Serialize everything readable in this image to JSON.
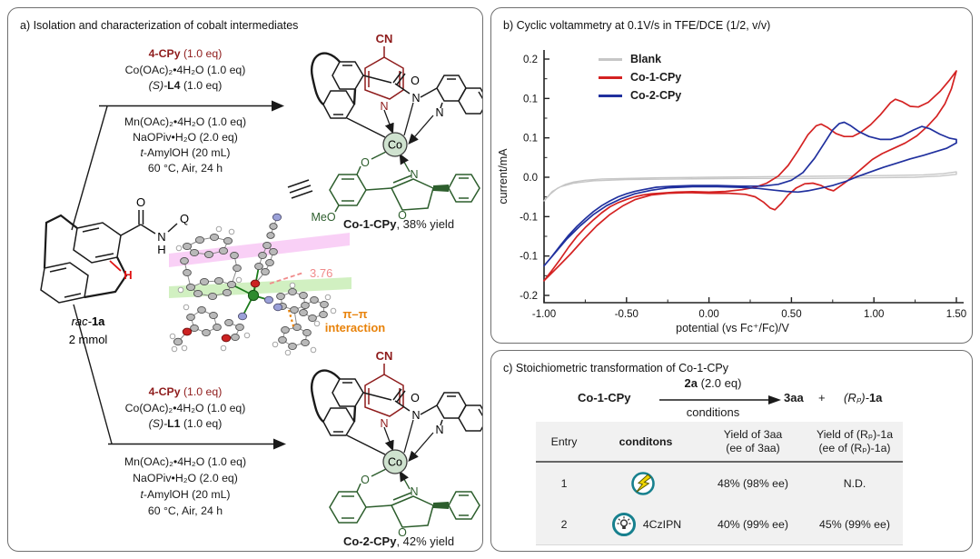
{
  "panel_a": {
    "title": "a) Isolation and characterization of cobalt intermediates",
    "substrate": {
      "name_italic": "rac-",
      "name_bold": "1a",
      "amount": "2 mmol",
      "atom_o": "O",
      "atom_n": "N",
      "atom_h": "H",
      "atom_q": "Q",
      "red_h": "H"
    },
    "reaction_top": {
      "reagent": "4-CPy",
      "reagent_eq": " (1.0 eq)",
      "line1": "Co(OAc)₂•4H₂O (1.0 eq)",
      "ligand_pre": "(S)-",
      "ligand": "L4",
      "ligand_eq": " (1.0 eq)",
      "below1": "Mn(OAc)₂•4H₂O (1.0 eq)",
      "below2": "NaOPiv•H₂O (2.0 eq)",
      "below3_it": "t",
      "below3_rest": "-AmylOH (20 mL)",
      "below4": "60 °C, Air, 24 h"
    },
    "reaction_bottom": {
      "reagent": "4-CPy",
      "reagent_eq": " (1.0 eq)",
      "line1": "Co(OAc)₂•4H₂O (1.0 eq)",
      "ligand_pre": "(S)-",
      "ligand": "L1",
      "ligand_eq": " (1.0 eq)",
      "below1": "Mn(OAc)₂•4H₂O (1.0 eq)",
      "below2": "NaOPiv•H₂O (2.0 eq)",
      "below3_it": "t",
      "below3_rest": "-AmylOH (20 mL)",
      "below4": "60 °C, Air, 24 h"
    },
    "complex_top": {
      "cn": "CN",
      "n_py": "N",
      "o_amide": "O",
      "n_amide": "N",
      "n_quin": "N",
      "co": "Co",
      "o_phenol": "O",
      "n_ox": "N",
      "o_ox": "O",
      "meo": "MeO",
      "caption_bold": "Co-1-CPy",
      "caption_rest": ", 38% yield"
    },
    "complex_bottom": {
      "cn": "CN",
      "n_py": "N",
      "o_amide": "O",
      "n_amide": "N",
      "n_quin": "N",
      "co": "Co",
      "o_phenol": "O",
      "n_ox": "N",
      "o_ox": "O",
      "caption_bold": "Co-2-CPy",
      "caption_rest": ", 42% yield"
    },
    "ortep": {
      "distance": "3.76",
      "pi_line1": "π–π",
      "pi_line2": "interaction"
    }
  },
  "chart_data": {
    "type": "line",
    "title": "b) Cyclic voltammetry at 0.1V/s in TFE/DCE (1/2, v/v)",
    "xlabel": "potential (vs Fc⁺/Fc)/V",
    "ylabel": "current/mA",
    "xlim": [
      -1.0,
      1.5
    ],
    "ylim": [
      -0.2,
      0.2
    ],
    "grid": false,
    "legend_position": "upper-left-inside",
    "x_ticks": [
      -1.0,
      -0.5,
      0.0,
      0.5,
      1.0,
      1.5
    ],
    "x_tick_labels": [
      "-1.00",
      "-0.50",
      "0.00",
      "0.50",
      "1.00",
      "1.50"
    ],
    "y_tick_labels": [
      "0.2",
      "0.1",
      "0.1",
      "0.0",
      "-0.1",
      "-0.1",
      "-0.2"
    ],
    "legend": [
      {
        "name": "Blank",
        "color": "#c6c6c6"
      },
      {
        "name": "Co-1-CPy",
        "color": "#d42222"
      },
      {
        "name": "Co-2-CPy",
        "color": "#20309e"
      }
    ],
    "series": [
      {
        "name": "Blank",
        "color": "#c6c6c6",
        "width": 1.4,
        "points": [
          [
            -1.0,
            -0.04
          ],
          [
            -0.96,
            -0.028
          ],
          [
            -0.92,
            -0.019
          ],
          [
            -0.87,
            -0.012
          ],
          [
            -0.82,
            -0.008
          ],
          [
            -0.75,
            -0.005
          ],
          [
            -0.65,
            -0.003
          ],
          [
            -0.5,
            -0.002
          ],
          [
            -0.3,
            -0.001
          ],
          [
            0.0,
            0.0
          ],
          [
            0.4,
            0.001
          ],
          [
            0.8,
            0.002
          ],
          [
            1.1,
            0.003
          ],
          [
            1.3,
            0.004
          ],
          [
            1.42,
            0.006
          ],
          [
            1.5,
            0.009
          ],
          [
            1.5,
            0.005
          ],
          [
            1.4,
            0.002
          ],
          [
            1.25,
            0.0
          ],
          [
            1.0,
            -0.001
          ],
          [
            0.6,
            -0.002
          ],
          [
            0.2,
            -0.002
          ],
          [
            -0.2,
            -0.003
          ],
          [
            -0.5,
            -0.004
          ],
          [
            -0.7,
            -0.006
          ],
          [
            -0.82,
            -0.01
          ],
          [
            -0.9,
            -0.016
          ],
          [
            -0.95,
            -0.024
          ],
          [
            -1.0,
            -0.04
          ]
        ]
      },
      {
        "name": "Co-1-CPy",
        "color": "#d42222",
        "width": 1.7,
        "points": [
          [
            -1.0,
            -0.175
          ],
          [
            -0.95,
            -0.157
          ],
          [
            -0.9,
            -0.138
          ],
          [
            -0.85,
            -0.118
          ],
          [
            -0.8,
            -0.1
          ],
          [
            -0.75,
            -0.085
          ],
          [
            -0.7,
            -0.072
          ],
          [
            -0.65,
            -0.06
          ],
          [
            -0.6,
            -0.05
          ],
          [
            -0.55,
            -0.043
          ],
          [
            -0.5,
            -0.0375
          ],
          [
            -0.45,
            -0.033
          ],
          [
            -0.4,
            -0.03
          ],
          [
            -0.35,
            -0.028
          ],
          [
            -0.3,
            -0.027
          ],
          [
            -0.2,
            -0.025
          ],
          [
            -0.1,
            -0.0245
          ],
          [
            0.0,
            -0.025
          ],
          [
            0.1,
            -0.024
          ],
          [
            0.2,
            -0.021
          ],
          [
            0.28,
            -0.017
          ],
          [
            0.35,
            -0.01
          ],
          [
            0.42,
            0.002
          ],
          [
            0.48,
            0.02
          ],
          [
            0.54,
            0.045
          ],
          [
            0.6,
            0.072
          ],
          [
            0.65,
            0.087
          ],
          [
            0.68,
            0.09
          ],
          [
            0.72,
            0.084
          ],
          [
            0.77,
            0.074
          ],
          [
            0.82,
            0.069
          ],
          [
            0.87,
            0.069
          ],
          [
            0.92,
            0.076
          ],
          [
            0.98,
            0.089
          ],
          [
            1.04,
            0.106
          ],
          [
            1.1,
            0.126
          ],
          [
            1.13,
            0.132
          ],
          [
            1.17,
            0.128
          ],
          [
            1.22,
            0.12
          ],
          [
            1.27,
            0.119
          ],
          [
            1.33,
            0.127
          ],
          [
            1.4,
            0.145
          ],
          [
            1.46,
            0.165
          ],
          [
            1.5,
            0.18
          ],
          [
            1.47,
            0.15
          ],
          [
            1.43,
            0.124
          ],
          [
            1.38,
            0.103
          ],
          [
            1.32,
            0.085
          ],
          [
            1.26,
            0.07
          ],
          [
            1.19,
            0.058
          ],
          [
            1.12,
            0.049
          ],
          [
            1.05,
            0.04
          ],
          [
            0.99,
            0.03
          ],
          [
            0.94,
            0.018
          ],
          [
            0.89,
            0.006
          ],
          [
            0.84,
            -0.006
          ],
          [
            0.79,
            -0.016
          ],
          [
            0.755,
            -0.023
          ],
          [
            0.72,
            -0.02
          ],
          [
            0.68,
            -0.014
          ],
          [
            0.63,
            -0.01
          ],
          [
            0.58,
            -0.011
          ],
          [
            0.53,
            -0.018
          ],
          [
            0.48,
            -0.03
          ],
          [
            0.44,
            -0.044
          ],
          [
            0.4,
            -0.055
          ],
          [
            0.37,
            -0.052
          ],
          [
            0.33,
            -0.042
          ],
          [
            0.28,
            -0.033
          ],
          [
            0.22,
            -0.029
          ],
          [
            0.12,
            -0.027
          ],
          [
            0.0,
            -0.027
          ],
          [
            -0.12,
            -0.026
          ],
          [
            -0.25,
            -0.027
          ],
          [
            -0.35,
            -0.03
          ],
          [
            -0.45,
            -0.038
          ],
          [
            -0.52,
            -0.048
          ],
          [
            -0.6,
            -0.063
          ],
          [
            -0.68,
            -0.082
          ],
          [
            -0.76,
            -0.105
          ],
          [
            -0.84,
            -0.13
          ],
          [
            -0.92,
            -0.153
          ],
          [
            -1.0,
            -0.175
          ]
        ]
      },
      {
        "name": "Co-2-CPy",
        "color": "#20309e",
        "width": 1.7,
        "points": [
          [
            -1.0,
            -0.15
          ],
          [
            -0.95,
            -0.133
          ],
          [
            -0.9,
            -0.115
          ],
          [
            -0.85,
            -0.098
          ],
          [
            -0.8,
            -0.083
          ],
          [
            -0.75,
            -0.07
          ],
          [
            -0.7,
            -0.058
          ],
          [
            -0.65,
            -0.048
          ],
          [
            -0.6,
            -0.04
          ],
          [
            -0.55,
            -0.033
          ],
          [
            -0.5,
            -0.028
          ],
          [
            -0.45,
            -0.024
          ],
          [
            -0.4,
            -0.021
          ],
          [
            -0.32,
            -0.017
          ],
          [
            -0.22,
            -0.015
          ],
          [
            -0.1,
            -0.014
          ],
          [
            0.05,
            -0.014
          ],
          [
            0.2,
            -0.015
          ],
          [
            0.32,
            -0.015
          ],
          [
            0.42,
            -0.012
          ],
          [
            0.5,
            -0.005
          ],
          [
            0.57,
            0.008
          ],
          [
            0.64,
            0.032
          ],
          [
            0.7,
            0.058
          ],
          [
            0.75,
            0.08
          ],
          [
            0.79,
            0.091
          ],
          [
            0.82,
            0.093
          ],
          [
            0.86,
            0.087
          ],
          [
            0.91,
            0.077
          ],
          [
            0.97,
            0.069
          ],
          [
            1.04,
            0.064
          ],
          [
            1.1,
            0.064
          ],
          [
            1.17,
            0.07
          ],
          [
            1.24,
            0.08
          ],
          [
            1.29,
            0.086
          ],
          [
            1.34,
            0.082
          ],
          [
            1.4,
            0.073
          ],
          [
            1.46,
            0.066
          ],
          [
            1.5,
            0.064
          ],
          [
            1.5,
            0.058
          ],
          [
            1.44,
            0.049
          ],
          [
            1.37,
            0.043
          ],
          [
            1.3,
            0.037
          ],
          [
            1.22,
            0.031
          ],
          [
            1.14,
            0.024
          ],
          [
            1.06,
            0.017
          ],
          [
            0.98,
            0.009
          ],
          [
            0.9,
            0.001
          ],
          [
            0.83,
            -0.007
          ],
          [
            0.75,
            -0.014
          ],
          [
            0.67,
            -0.019
          ],
          [
            0.6,
            -0.023
          ],
          [
            0.54,
            -0.025
          ],
          [
            0.47,
            -0.024
          ],
          [
            0.4,
            -0.022
          ],
          [
            0.3,
            -0.019
          ],
          [
            0.18,
            -0.017
          ],
          [
            0.05,
            -0.016
          ],
          [
            -0.1,
            -0.016
          ],
          [
            -0.25,
            -0.018
          ],
          [
            -0.35,
            -0.022
          ],
          [
            -0.45,
            -0.028
          ],
          [
            -0.53,
            -0.036
          ],
          [
            -0.62,
            -0.048
          ],
          [
            -0.7,
            -0.063
          ],
          [
            -0.78,
            -0.082
          ],
          [
            -0.86,
            -0.104
          ],
          [
            -0.93,
            -0.127
          ],
          [
            -1.0,
            -0.15
          ]
        ]
      }
    ]
  },
  "panel_c": {
    "title": "c) Stoichiometric transformation of Co-1-CPy",
    "scheme": {
      "reactant": "Co-1-CPy",
      "above_bold": "2a",
      "above_rest": " (2.0 eq)",
      "below": "conditions",
      "product1": "3aa",
      "plus": "+",
      "product2_pre": "(Rₚ)-",
      "product2_bold": "1a"
    },
    "table": {
      "headers": {
        "entry": "Entry",
        "conditions": "conditons",
        "yield3_line1": "Yield of 3aa",
        "yield3_line2": "(ee of 3aa)",
        "yieldrp_line1": "Yield of (Rₚ)-1a",
        "yieldrp_line2": "(ee of (Rₚ)-1a)"
      },
      "rows": [
        {
          "entry": "1",
          "icon": "lightning-icon",
          "label": "",
          "yield_3aa": "48% (98% ee)",
          "yield_rp": "N.D."
        },
        {
          "entry": "2",
          "icon": "bulb-icon",
          "label": "4CzIPN",
          "yield_3aa": "40% (99% ee)",
          "yield_rp": "45% (99% ee)"
        }
      ]
    }
  },
  "colors": {
    "dark_red": "#8e1b1b",
    "bright_red": "#e01212",
    "dark_green": "#2d5e2d",
    "teal": "#17808e",
    "orange": "#e8820a",
    "pink_label": "#f08a8a",
    "band_pink": "#f4a9ef",
    "band_green": "#b5e79b",
    "table_bg": "#f1f1f1",
    "chart_red": "#d42222",
    "chart_blue": "#20309e",
    "chart_gray": "#c6c6c6"
  }
}
